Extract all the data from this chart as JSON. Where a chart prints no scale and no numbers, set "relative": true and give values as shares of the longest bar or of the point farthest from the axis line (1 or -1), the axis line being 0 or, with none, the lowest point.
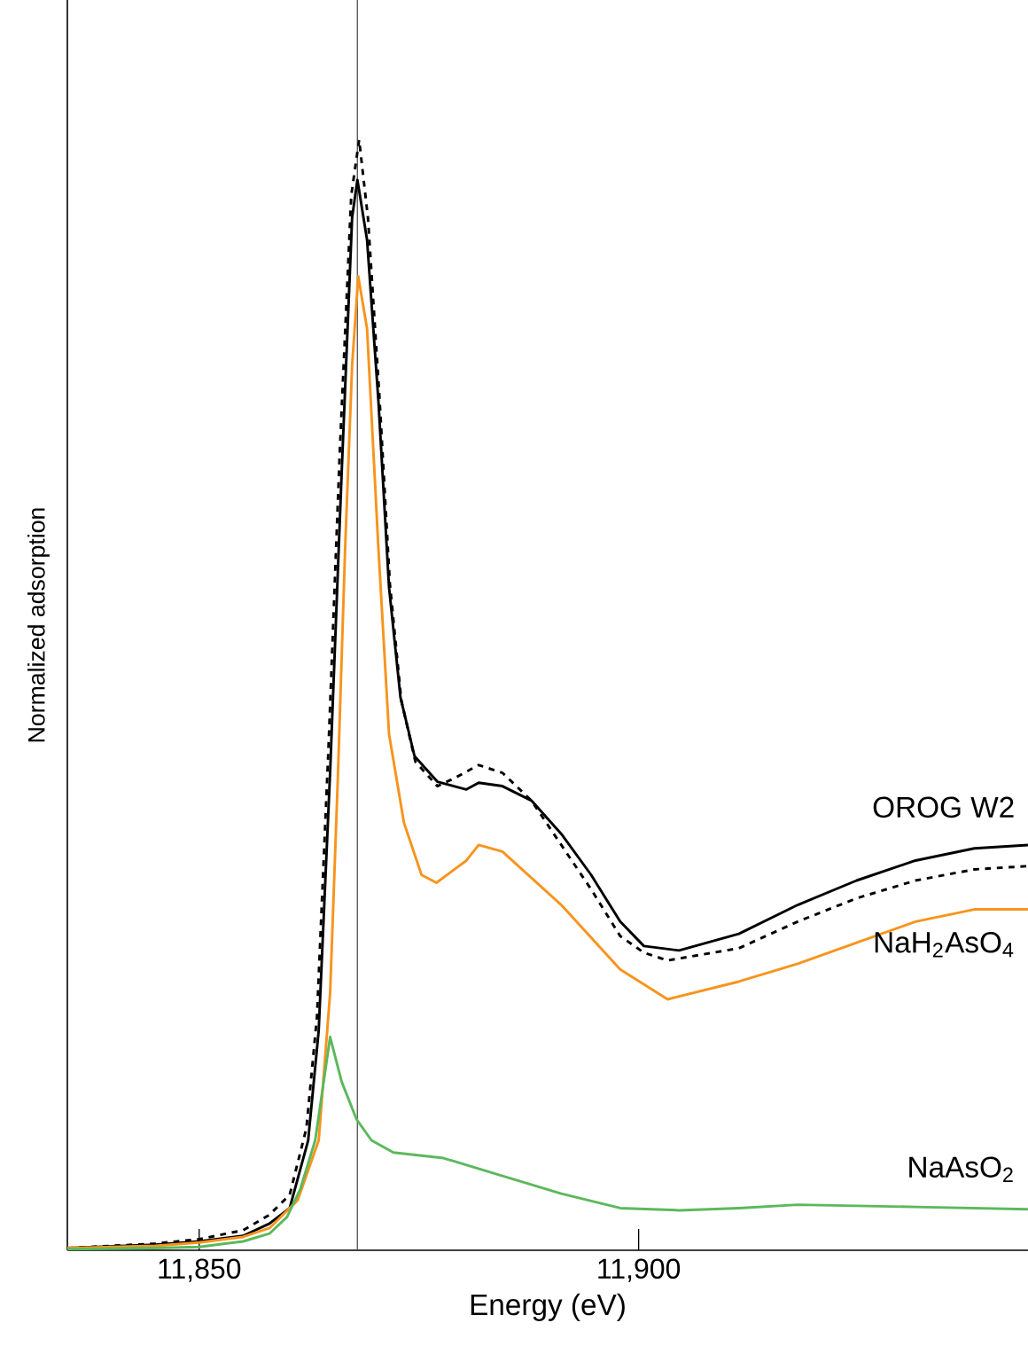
{
  "chart_data": {
    "type": "line",
    "xlabel": "Energy (eV)",
    "ylabel": "Normalized adsorption",
    "relative": true,
    "xlim": [
      11835,
      11944.3
    ],
    "xticks": [
      {
        "value": 11850,
        "label": "11,850"
      },
      {
        "value": 11900,
        "label": "11,900"
      }
    ],
    "ref_lines": [
      {
        "axis": "x",
        "value": 11868,
        "color": "#555555"
      }
    ],
    "series": [
      {
        "color": "#000000",
        "line_style": "dashed",
        "x": [
          11835,
          11845,
          11850,
          11855,
          11858,
          11860.3,
          11862.2,
          11863.4,
          11864.7,
          11866,
          11867.3,
          11868.2,
          11869.2,
          11870.5,
          11871.7,
          11873,
          11874.6,
          11877.1,
          11879,
          11881.8,
          11884.5,
          11887.8,
          11891.2,
          11894.6,
          11897.9,
          11900.6,
          11903.3,
          11911.4,
          11918.1,
          11924.8,
          11931.5,
          11938.2,
          11944.3
        ],
        "values": [
          0.002,
          0.006,
          0.01,
          0.018,
          0.032,
          0.05,
          0.11,
          0.21,
          0.45,
          0.72,
          0.95,
          1.0,
          0.93,
          0.77,
          0.6,
          0.495,
          0.44,
          0.418,
          0.425,
          0.437,
          0.43,
          0.405,
          0.365,
          0.325,
          0.283,
          0.268,
          0.261,
          0.272,
          0.296,
          0.317,
          0.333,
          0.343,
          0.346
        ]
      },
      {
        "name": "OROG W2",
        "color": "#000000",
        "line_style": "solid",
        "x": [
          11835,
          11845,
          11850,
          11855,
          11858,
          11860.3,
          11862.4,
          11863.6,
          11864.9,
          11866.2,
          11867.4,
          11868,
          11869.1,
          11870.4,
          11871.6,
          11872.9,
          11874.5,
          11877.1,
          11880.4,
          11881.8,
          11884.5,
          11887.8,
          11891.2,
          11894.6,
          11897.9,
          11900.6,
          11904.6,
          11911.4,
          11918.1,
          11924.8,
          11931.5,
          11938.2,
          11944.3
        ],
        "values": [
          0.002,
          0.005,
          0.008,
          0.013,
          0.024,
          0.038,
          0.099,
          0.198,
          0.431,
          0.698,
          0.93,
          0.964,
          0.91,
          0.764,
          0.597,
          0.498,
          0.445,
          0.422,
          0.415,
          0.421,
          0.418,
          0.405,
          0.375,
          0.338,
          0.296,
          0.274,
          0.27,
          0.285,
          0.311,
          0.333,
          0.351,
          0.362,
          0.365
        ]
      },
      {
        "name": "NaH$_{2}$AsO$_{4}$",
        "color": "#f7941d",
        "line_style": "solid",
        "x": [
          11835,
          11845,
          11850,
          11855,
          11858,
          11861.2,
          11863.6,
          11864.9,
          11865.8,
          11866.6,
          11867.4,
          11868.1,
          11869.1,
          11870.4,
          11871.6,
          11873.3,
          11875.3,
          11877,
          11880.4,
          11881.8,
          11884.5,
          11891.2,
          11897.9,
          11903.3,
          11911.4,
          11918.1,
          11924.8,
          11931.5,
          11938.2,
          11944.3
        ],
        "values": [
          0.002,
          0.004,
          0.007,
          0.012,
          0.02,
          0.045,
          0.099,
          0.232,
          0.431,
          0.631,
          0.797,
          0.877,
          0.83,
          0.631,
          0.465,
          0.385,
          0.338,
          0.331,
          0.351,
          0.365,
          0.359,
          0.311,
          0.253,
          0.226,
          0.242,
          0.258,
          0.277,
          0.296,
          0.307,
          0.307
        ]
      },
      {
        "name": "NaAsO$_{2}$",
        "color": "#5cb85c",
        "line_style": "solid",
        "x": [
          11835,
          11845,
          11850,
          11855,
          11858,
          11860,
          11861.5,
          11863.2,
          11864.9,
          11866.2,
          11867.9,
          11869.6,
          11872.1,
          11877.8,
          11884.5,
          11891.2,
          11897.9,
          11904.6,
          11911.4,
          11918.1,
          11924.8,
          11931.5,
          11944.3
        ],
        "values": [
          0.001,
          0.002,
          0.003,
          0.008,
          0.015,
          0.03,
          0.055,
          0.099,
          0.192,
          0.152,
          0.118,
          0.099,
          0.088,
          0.083,
          0.067,
          0.051,
          0.038,
          0.036,
          0.038,
          0.041,
          0.04,
          0.039,
          0.037
        ]
      }
    ]
  }
}
